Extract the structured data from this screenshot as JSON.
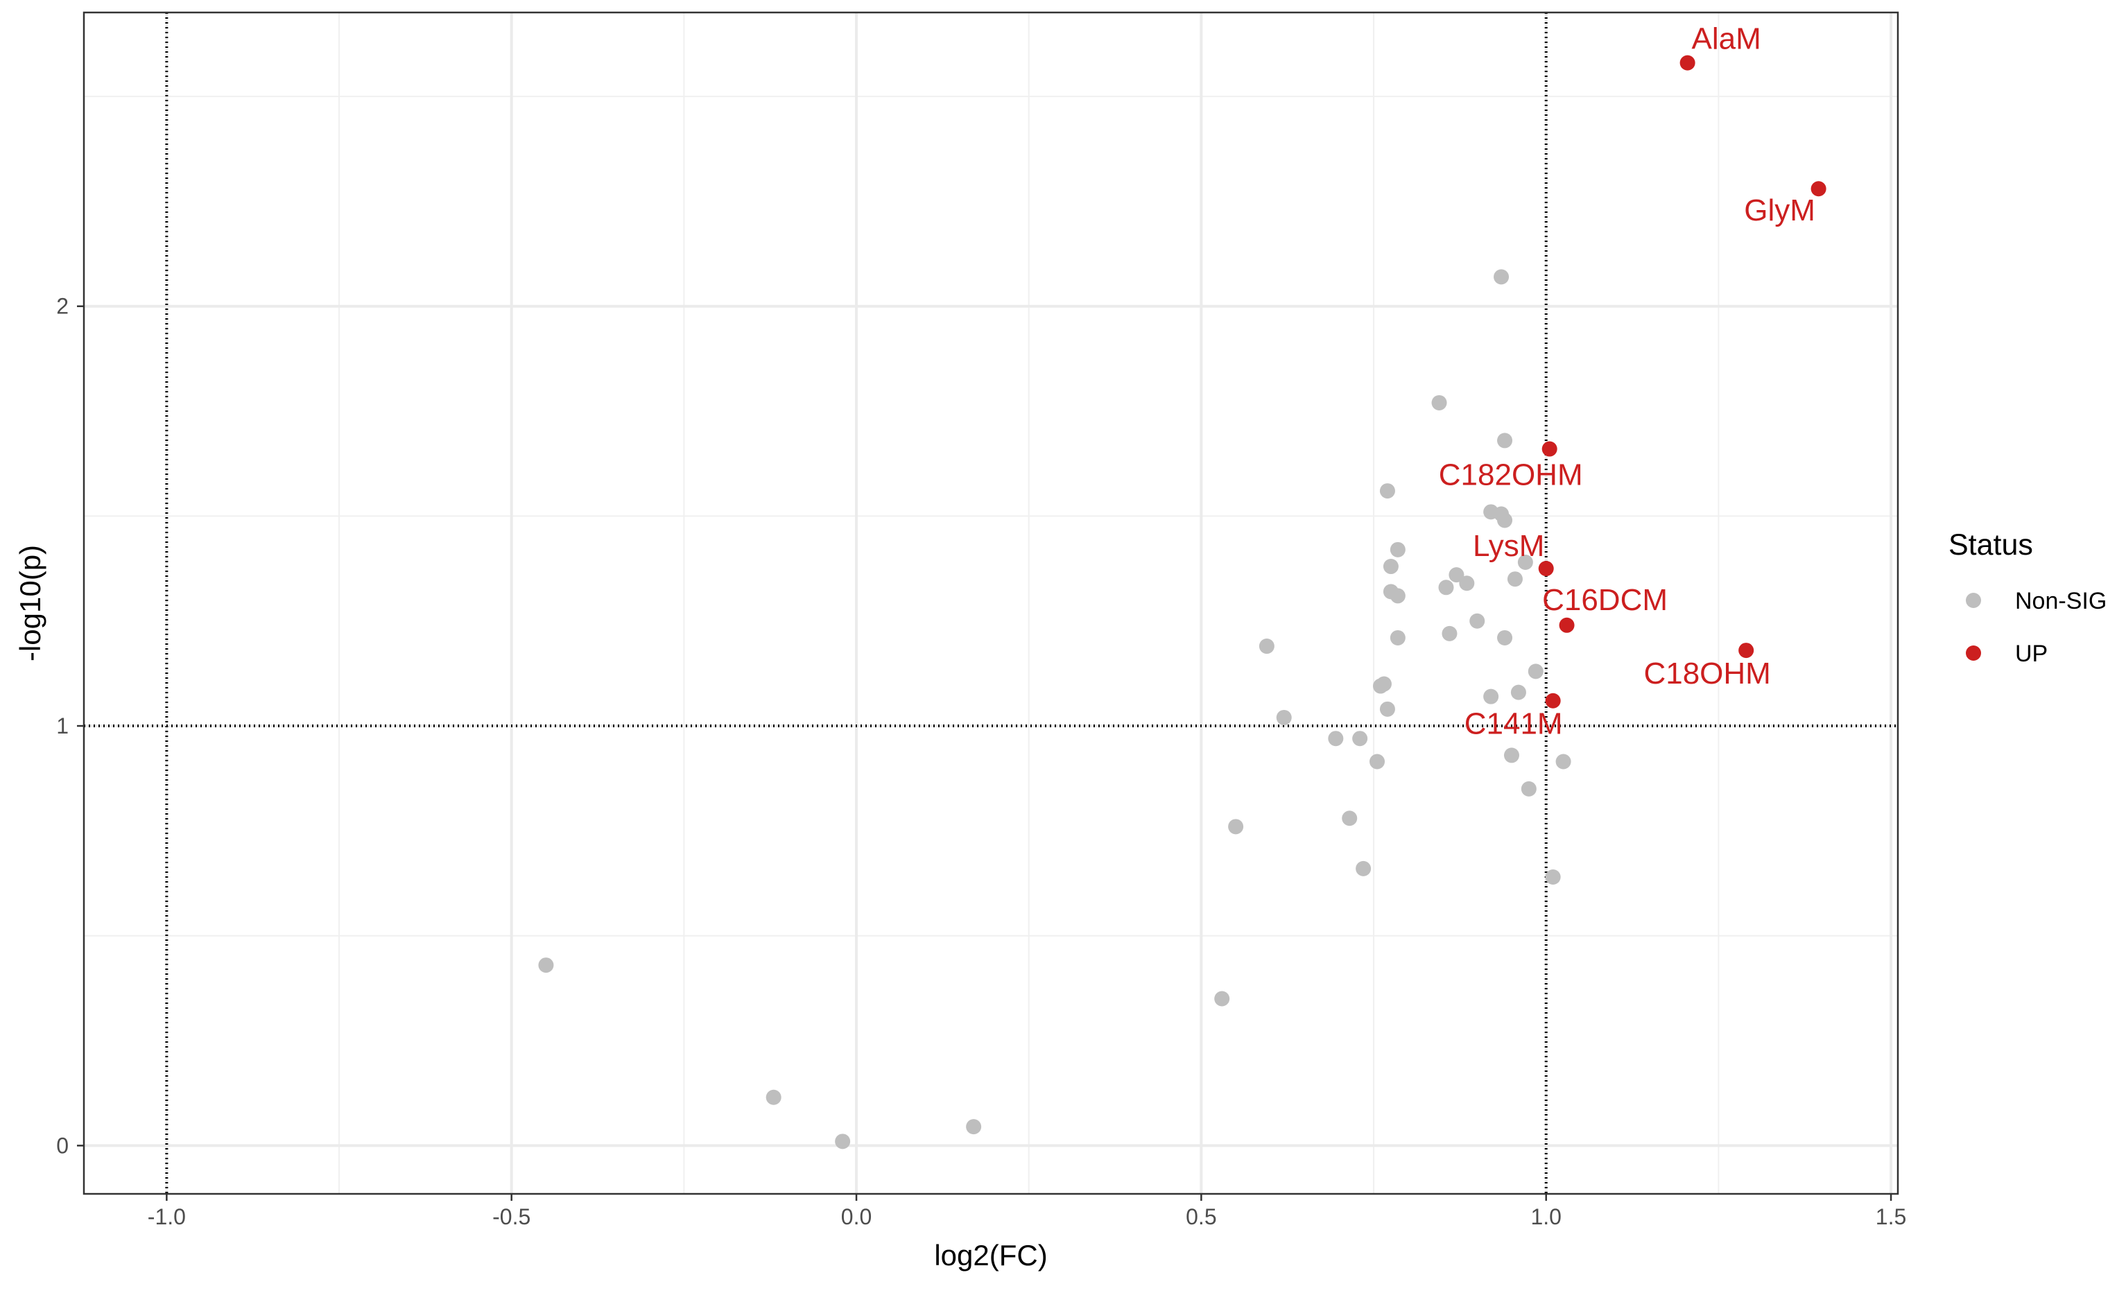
{
  "chart_data": {
    "type": "scatter",
    "title": "",
    "xlabel": "log2(FC)",
    "ylabel": "-log10(p)",
    "xlim": [
      -1.12,
      1.51
    ],
    "ylim": [
      -0.115,
      2.7
    ],
    "xticks": [
      -1.0,
      -0.5,
      0.0,
      0.5,
      1.0,
      1.5
    ],
    "xtick_labels": [
      "-1.0",
      "-0.5",
      "0.0",
      "0.5",
      "1.0",
      "1.5"
    ],
    "yticks": [
      0,
      1,
      2
    ],
    "ytick_labels": [
      "0",
      "1",
      "2"
    ],
    "grid": true,
    "reference_lines": {
      "vertical_x": [
        -1.0,
        1.0
      ],
      "horizontal_y": [
        1.0
      ],
      "style": "dotted"
    },
    "legend": {
      "title": "Status",
      "placement": "right",
      "entries": [
        {
          "label": "Non-SIG",
          "color": "#bebebe"
        },
        {
          "label": "UP",
          "color": "#cc1f1f"
        }
      ]
    },
    "series": [
      {
        "name": "Non-SIG",
        "color": "#bebebe",
        "points": [
          {
            "x": -0.45,
            "y": 0.43
          },
          {
            "x": -0.12,
            "y": 0.115
          },
          {
            "x": -0.02,
            "y": 0.01
          },
          {
            "x": 0.17,
            "y": 0.045
          },
          {
            "x": 0.53,
            "y": 0.35
          },
          {
            "x": 0.55,
            "y": 0.76
          },
          {
            "x": 0.595,
            "y": 1.19
          },
          {
            "x": 0.62,
            "y": 1.02
          },
          {
            "x": 0.695,
            "y": 0.97
          },
          {
            "x": 0.715,
            "y": 0.78
          },
          {
            "x": 0.73,
            "y": 0.97
          },
          {
            "x": 0.735,
            "y": 0.66
          },
          {
            "x": 0.755,
            "y": 0.915
          },
          {
            "x": 0.76,
            "y": 1.095
          },
          {
            "x": 0.765,
            "y": 1.1
          },
          {
            "x": 0.77,
            "y": 1.04
          },
          {
            "x": 0.77,
            "y": 1.56
          },
          {
            "x": 0.775,
            "y": 1.38
          },
          {
            "x": 0.775,
            "y": 1.32
          },
          {
            "x": 0.785,
            "y": 1.31
          },
          {
            "x": 0.785,
            "y": 1.42
          },
          {
            "x": 0.785,
            "y": 1.21
          },
          {
            "x": 0.845,
            "y": 1.77
          },
          {
            "x": 0.855,
            "y": 1.33
          },
          {
            "x": 0.86,
            "y": 1.22
          },
          {
            "x": 0.87,
            "y": 1.36
          },
          {
            "x": 0.885,
            "y": 1.34
          },
          {
            "x": 0.9,
            "y": 1.25
          },
          {
            "x": 0.92,
            "y": 1.51
          },
          {
            "x": 0.92,
            "y": 1.07
          },
          {
            "x": 0.935,
            "y": 2.07
          },
          {
            "x": 0.935,
            "y": 1.505
          },
          {
            "x": 0.94,
            "y": 1.68
          },
          {
            "x": 0.94,
            "y": 1.49
          },
          {
            "x": 0.94,
            "y": 1.21
          },
          {
            "x": 0.95,
            "y": 0.93
          },
          {
            "x": 0.955,
            "y": 1.35
          },
          {
            "x": 0.96,
            "y": 1.08
          },
          {
            "x": 0.97,
            "y": 1.39
          },
          {
            "x": 0.975,
            "y": 0.85
          },
          {
            "x": 0.985,
            "y": 1.13
          },
          {
            "x": 1.01,
            "y": 0.64
          },
          {
            "x": 1.025,
            "y": 0.915
          }
        ]
      },
      {
        "name": "UP",
        "color": "#cc1f1f",
        "points": [
          {
            "x": 1.205,
            "y": 2.58,
            "label": "AlaM"
          },
          {
            "x": 1.395,
            "y": 2.28,
            "label": "GlyM"
          },
          {
            "x": 1.005,
            "y": 1.66,
            "label": "C182OHM"
          },
          {
            "x": 1.0,
            "y": 1.375,
            "label": "LysM"
          },
          {
            "x": 1.03,
            "y": 1.24,
            "label": "C16DCM"
          },
          {
            "x": 1.29,
            "y": 1.18,
            "label": "C18OHM"
          },
          {
            "x": 1.01,
            "y": 1.06,
            "label": "C141M"
          }
        ]
      }
    ]
  }
}
